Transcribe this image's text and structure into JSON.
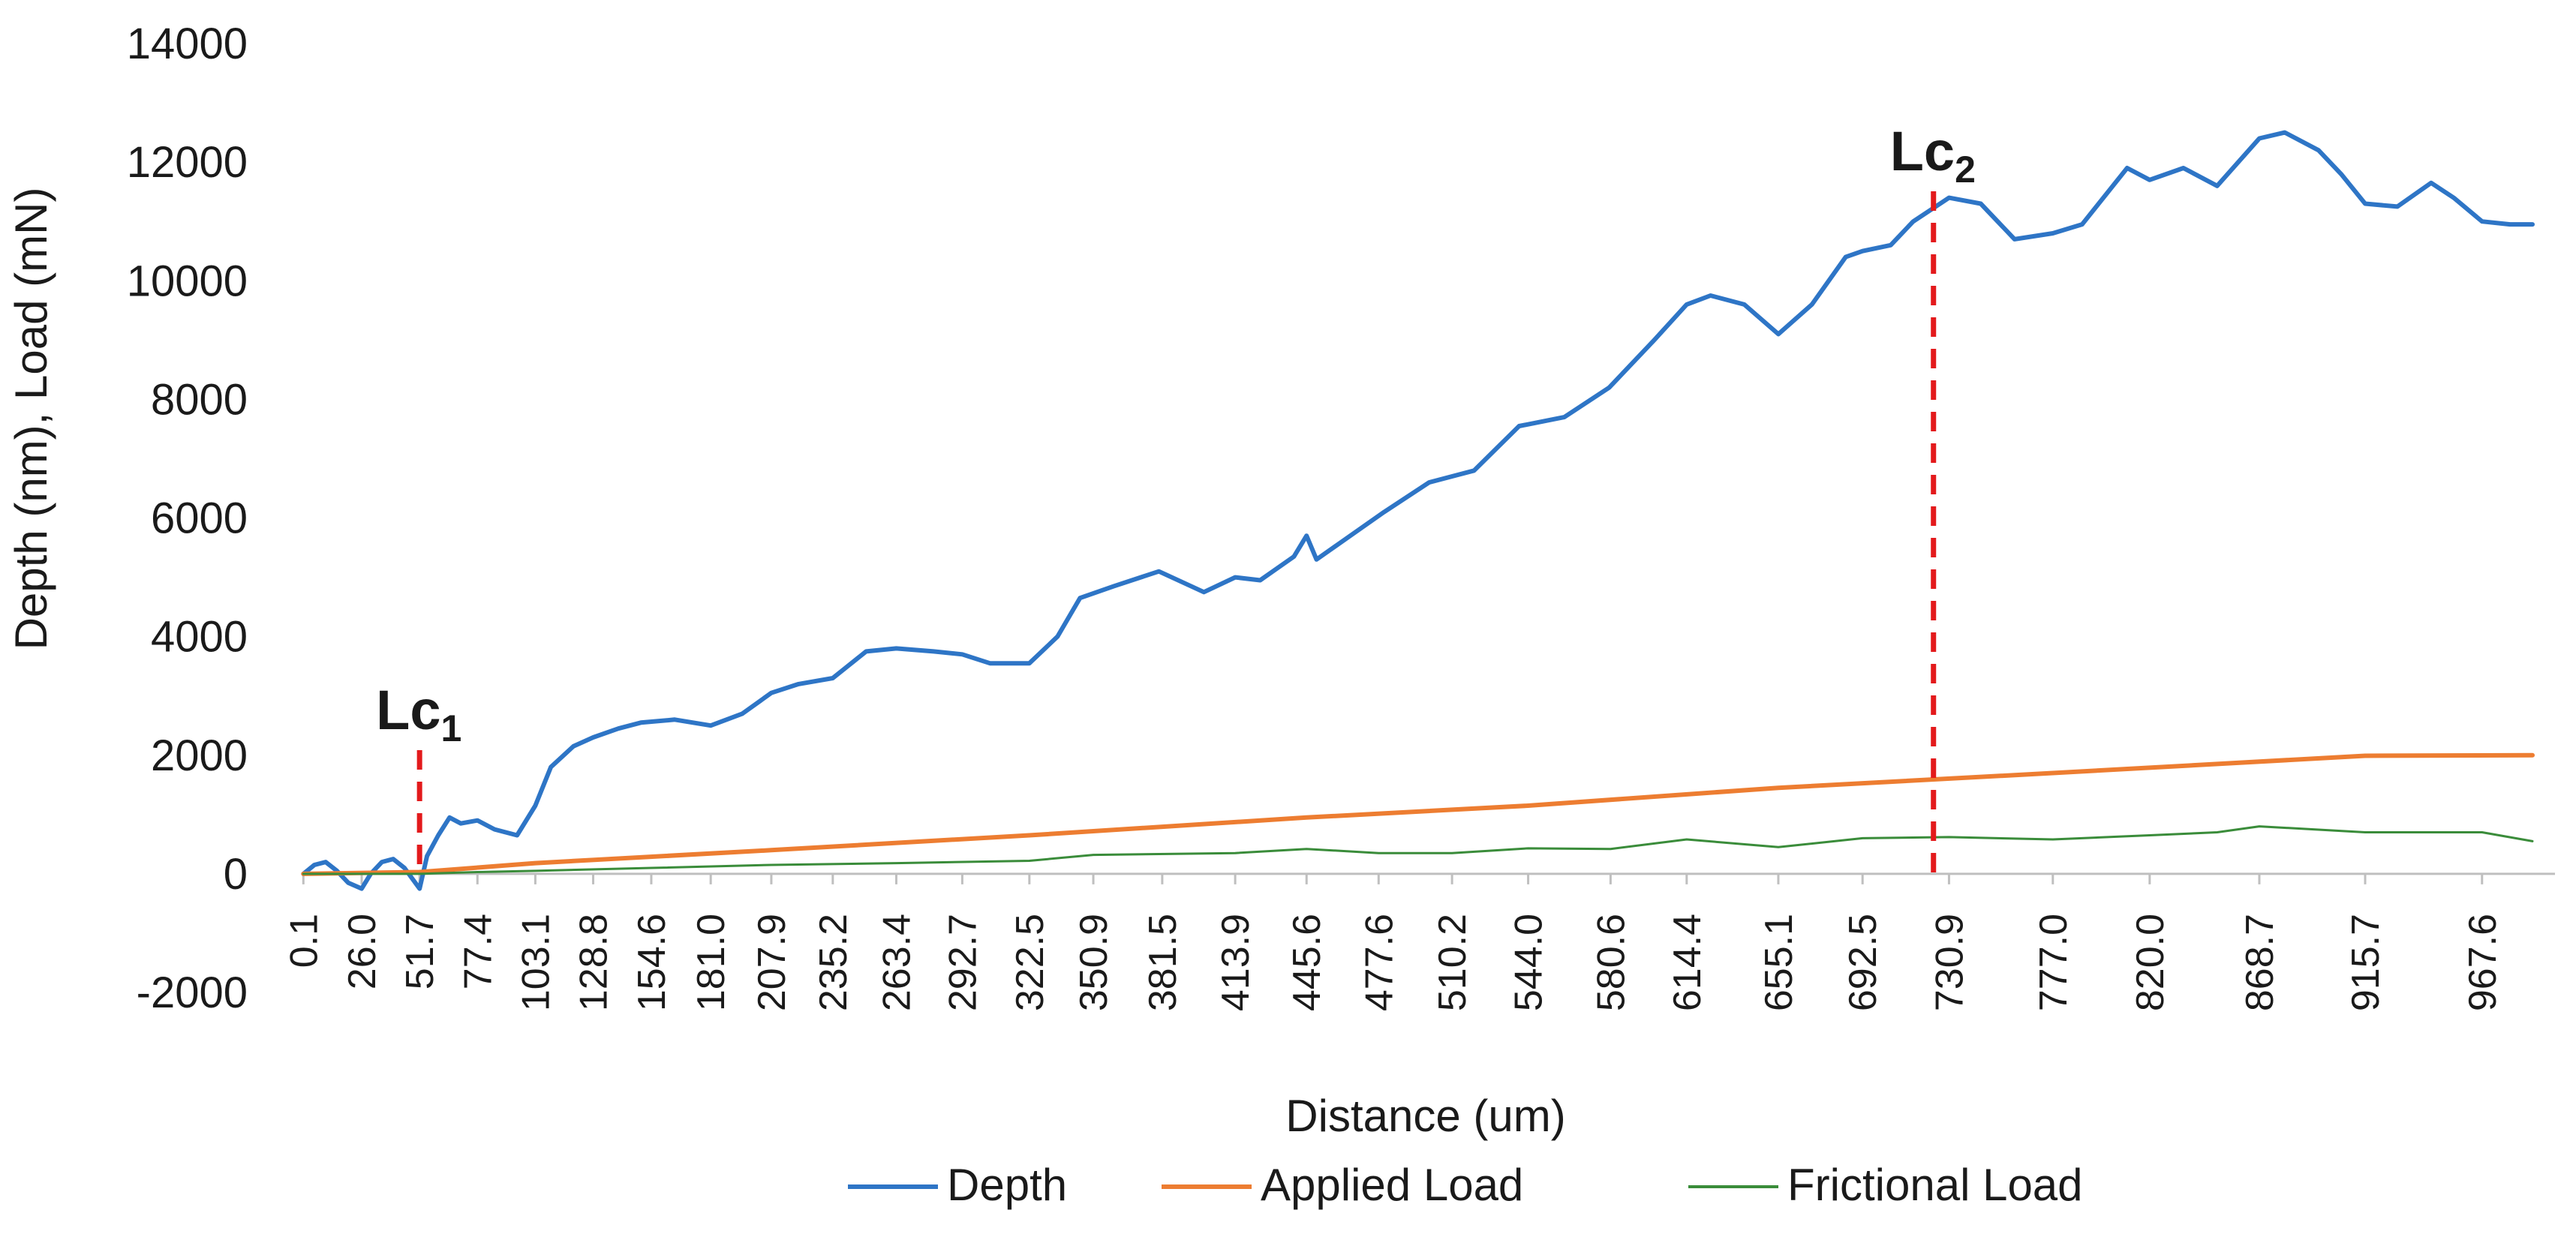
{
  "chart_data": {
    "type": "line",
    "title": "",
    "xlabel": "Distance (um)",
    "ylabel": "Depth (nm), Load (mN)",
    "ylim": [
      -2000,
      14000
    ],
    "yticks": [
      "-2000",
      "0",
      "2000",
      "4000",
      "6000",
      "8000",
      "10000",
      "12000",
      "14000"
    ],
    "xlim": [
      0,
      1000
    ],
    "xtick_labels": [
      "0.1",
      "26.0",
      "51.7",
      "77.4",
      "103.1",
      "128.8",
      "154.6",
      "181.0",
      "207.9",
      "235.2",
      "263.4",
      "292.7",
      "322.5",
      "350.9",
      "381.5",
      "413.9",
      "445.6",
      "477.6",
      "510.2",
      "544.0",
      "580.6",
      "614.4",
      "655.1",
      "692.5",
      "730.9",
      "777.0",
      "820.0",
      "868.7",
      "915.7",
      "967.6"
    ],
    "grid": false,
    "legend_position": "bottom",
    "series": [
      {
        "name": "Depth",
        "color": "#2E75C6",
        "x": [
          0.1,
          5,
          10,
          15,
          20,
          26,
          30,
          35,
          40,
          45,
          51.7,
          55,
          60,
          65,
          70,
          77.4,
          85,
          95,
          103.1,
          110,
          120,
          128.8,
          140,
          150,
          165,
          181,
          195,
          207.9,
          220,
          235.2,
          250,
          263.4,
          280,
          292.7,
          305,
          322.5,
          335,
          345,
          360,
          380,
          400,
          413.9,
          425,
          440,
          445.6,
          450,
          465,
          480,
          500,
          520,
          540,
          560,
          580,
          600,
          614.4,
          625,
          640,
          655.1,
          670,
          685,
          692.5,
          705,
          715,
          730.9,
          745,
          760,
          777,
          790,
          810,
          820,
          835,
          850,
          868.7,
          880,
          895,
          905,
          915.7,
          930,
          945,
          955,
          967.6,
          980,
          990
        ],
        "values": [
          0,
          150,
          200,
          50,
          -150,
          -250,
          0,
          200,
          250,
          100,
          -250,
          300,
          650,
          950,
          850,
          900,
          750,
          650,
          1150,
          1800,
          2150,
          2300,
          2450,
          2550,
          2600,
          2500,
          2700,
          3050,
          3200,
          3300,
          3750,
          3800,
          3750,
          3700,
          3550,
          3550,
          4000,
          4650,
          4850,
          5100,
          4750,
          5000,
          4950,
          5350,
          5700,
          5300,
          5700,
          6100,
          6600,
          6800,
          7550,
          7700,
          8200,
          9000,
          9600,
          9750,
          9600,
          9100,
          9600,
          10400,
          10500,
          10600,
          11000,
          11400,
          11300,
          10700,
          10800,
          10950,
          11900,
          11700,
          11900,
          11600,
          12400,
          12500,
          12200,
          11800,
          11300,
          11250,
          11650,
          11400,
          11000,
          10950,
          10950
        ]
      },
      {
        "name": "Applied Load",
        "color": "#ED7D31",
        "x": [
          0.1,
          51.7,
          103.1,
          207.9,
          322.5,
          445.6,
          544,
          655.1,
          777,
          915.7,
          990
        ],
        "values": [
          0,
          30,
          180,
          400,
          650,
          950,
          1150,
          1450,
          1700,
          1990,
          2000
        ]
      },
      {
        "name": "Frictional Load",
        "color": "#3A8C3A",
        "x": [
          0.1,
          51.7,
          77.4,
          103.1,
          154.6,
          207.9,
          263.4,
          322.5,
          350.9,
          413.9,
          445.6,
          477.6,
          510.2,
          544,
          580.6,
          614.4,
          655.1,
          692.5,
          730.9,
          777,
          820,
          850,
          868.7,
          915.7,
          967.6,
          990
        ],
        "values": [
          0,
          0,
          30,
          50,
          100,
          150,
          180,
          220,
          320,
          350,
          420,
          350,
          350,
          430,
          420,
          580,
          450,
          600,
          620,
          580,
          650,
          700,
          800,
          700,
          700,
          550
        ]
      }
    ],
    "markers": [
      {
        "label": "Lc",
        "subscript": "1",
        "x": 51.7,
        "color": "#E31A1C"
      },
      {
        "label": "Lc",
        "subscript": "2",
        "x": 724,
        "color": "#E31A1C"
      }
    ]
  }
}
